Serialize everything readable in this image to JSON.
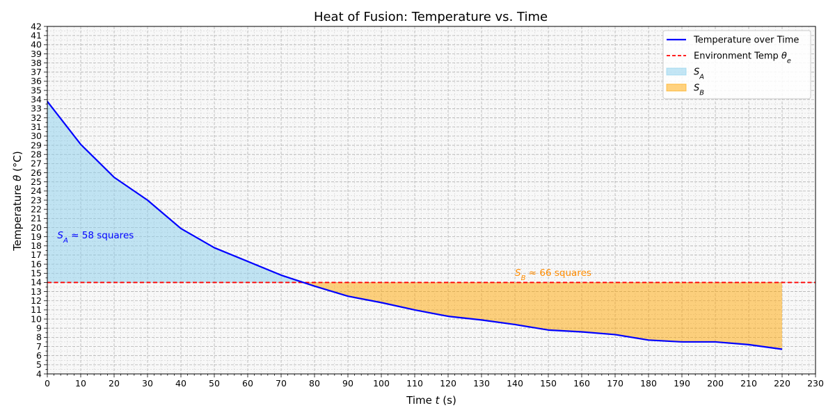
{
  "chart_data": {
    "type": "line",
    "title": "Heat of Fusion: Temperature vs. Time",
    "xlabel": "Time t (s)",
    "ylabel": "Temperature θ (°C)",
    "xlim": [
      0,
      230
    ],
    "ylim": [
      4,
      42
    ],
    "x_major_step": 10,
    "y_major_step": 1,
    "grid": true,
    "legend_position": "top-right",
    "series": [
      {
        "name": "Temperature over Time",
        "color": "#0000ff",
        "x": [
          0,
          10,
          20,
          30,
          40,
          50,
          60,
          70,
          80,
          90,
          100,
          110,
          120,
          130,
          140,
          150,
          160,
          170,
          180,
          190,
          200,
          210,
          220
        ],
        "y": [
          33.8,
          29.1,
          25.5,
          23.0,
          19.9,
          17.8,
          16.3,
          14.8,
          13.6,
          12.5,
          11.8,
          11.0,
          10.3,
          9.9,
          9.4,
          8.8,
          8.6,
          8.3,
          7.7,
          7.5,
          7.5,
          7.2,
          6.7
        ]
      }
    ],
    "environment_temp": {
      "name": "Environment Temp θe",
      "value": 14.0,
      "color": "#ff0000"
    },
    "areas": [
      {
        "name": "S_A",
        "color": "#87ceeb",
        "annotation": "S_A ≈ 58 squares",
        "annotation_color": "#0000ff",
        "annotation_x": 3,
        "annotation_y": 19.2
      },
      {
        "name": "S_B",
        "color": "#ffa500",
        "annotation": "S_B ≈ 66 squares",
        "annotation_color": "#ff8c00",
        "annotation_x": 140,
        "annotation_y": 15.1
      }
    ],
    "legend": [
      {
        "label": "Temperature over Time",
        "kind": "line",
        "color": "#0000ff"
      },
      {
        "label": "Environment Temp θe",
        "kind": "dashed",
        "color": "#ff0000"
      },
      {
        "label": "S_A",
        "kind": "patch",
        "color": "#87ceeb"
      },
      {
        "label": "S_B",
        "kind": "patch",
        "color": "#ffa500"
      }
    ]
  }
}
